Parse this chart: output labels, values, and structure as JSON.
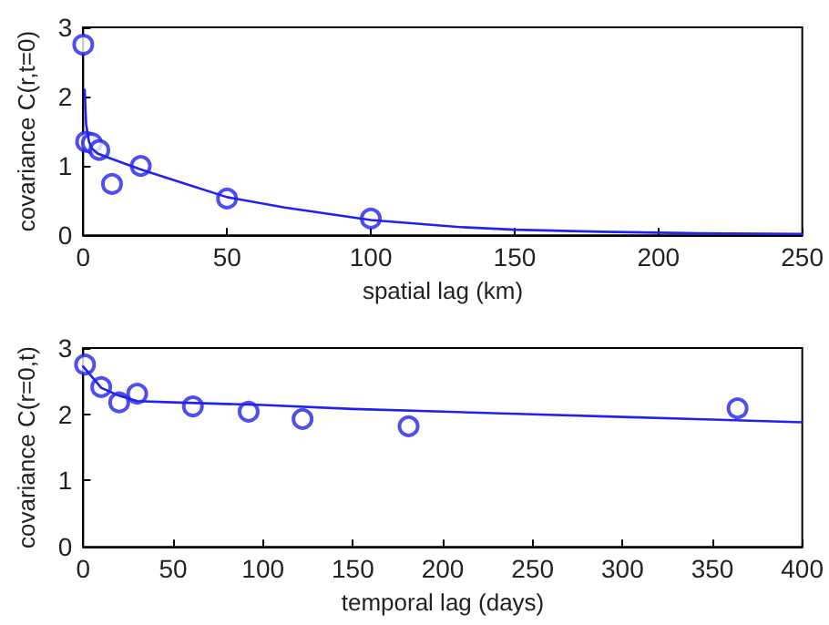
{
  "chart_data": [
    {
      "type": "scatter",
      "xlabel": "spatial lag (km)",
      "ylabel": "covariance C(r,t=0)",
      "xlim": [
        0,
        250
      ],
      "ylim": [
        0,
        3
      ],
      "xticks": [
        0,
        50,
        100,
        150,
        200,
        250
      ],
      "yticks": [
        0,
        1,
        2,
        3
      ],
      "grid": false,
      "series": [
        {
          "marker": "circle",
          "color": "#2222ee",
          "x": [
            0,
            1,
            3,
            5.6,
            10,
            20,
            50,
            100
          ],
          "values": [
            2.75,
            1.35,
            1.33,
            1.23,
            0.74,
            1.0,
            0.53,
            0.24
          ]
        },
        {
          "type": "line",
          "marker": "none",
          "line_style": "solid",
          "color": "#2222ee",
          "x": [
            0.5,
            1,
            2,
            3,
            5,
            10,
            20,
            35,
            50,
            70,
            100,
            130,
            150,
            180,
            210,
            250
          ],
          "values": [
            2.1,
            1.6,
            1.35,
            1.25,
            1.18,
            1.1,
            0.95,
            0.75,
            0.55,
            0.4,
            0.22,
            0.12,
            0.08,
            0.05,
            0.03,
            0.02
          ]
        }
      ]
    },
    {
      "type": "scatter",
      "xlabel": "temporal lag (days)",
      "ylabel": "covariance C(r=0,t)",
      "xlim": [
        0,
        400
      ],
      "ylim": [
        0,
        3
      ],
      "xticks": [
        0,
        50,
        100,
        150,
        200,
        250,
        300,
        350,
        400
      ],
      "yticks": [
        0,
        1,
        2,
        3
      ],
      "grid": false,
      "series": [
        {
          "marker": "circle",
          "color": "#2222ee",
          "x": [
            1,
            10,
            20,
            30,
            61,
            92,
            122,
            181,
            364
          ],
          "values": [
            2.75,
            2.41,
            2.18,
            2.31,
            2.12,
            2.04,
            1.93,
            1.82,
            2.09
          ]
        },
        {
          "type": "line",
          "marker": "none",
          "line_style": "solid",
          "color": "#2222ee",
          "x": [
            0,
            10,
            20,
            30,
            50,
            100,
            150,
            200,
            250,
            300,
            350,
            400
          ],
          "values": [
            2.72,
            2.4,
            2.28,
            2.2,
            2.18,
            2.14,
            2.08,
            2.04,
            2.0,
            1.96,
            1.92,
            1.88
          ]
        }
      ]
    }
  ]
}
